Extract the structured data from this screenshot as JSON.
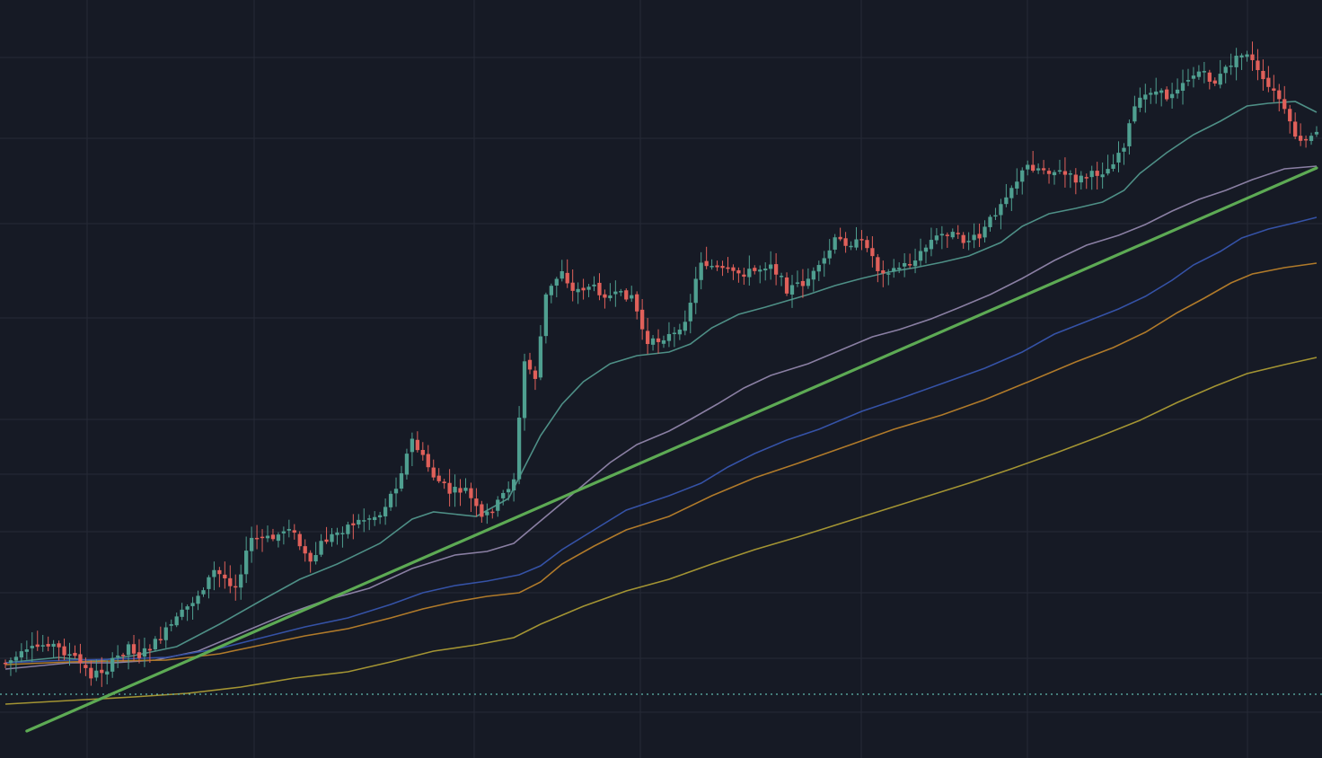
{
  "chart_data": {
    "type": "candlestick",
    "title": "",
    "xlabel": "",
    "ylabel": "",
    "x_range": [
      0,
      245
    ],
    "y_range": [
      0,
      844
    ],
    "grid": true,
    "colors": {
      "background": "#161a25",
      "grid": "#262a36",
      "up": "#4f9f90",
      "down": "#e0605a",
      "trendline": "#5daa54",
      "reference_line": "#5fb9ad"
    },
    "reference_level": 773,
    "trendline": {
      "from": [
        4,
        814
      ],
      "to": [
        245,
        187
      ]
    },
    "ohlc_anchors": [
      [
        0,
        738
      ],
      [
        8,
        715
      ],
      [
        13,
        733
      ],
      [
        16,
        752
      ],
      [
        19,
        744
      ],
      [
        23,
        718
      ],
      [
        25,
        730
      ],
      [
        28,
        716
      ],
      [
        32,
        690
      ],
      [
        36,
        662
      ],
      [
        39,
        636
      ],
      [
        43,
        652
      ],
      [
        46,
        600
      ],
      [
        50,
        600
      ],
      [
        53,
        585
      ],
      [
        57,
        630
      ],
      [
        59,
        605
      ],
      [
        64,
        585
      ],
      [
        67,
        578
      ],
      [
        70,
        573
      ],
      [
        73,
        540
      ],
      [
        76,
        490
      ],
      [
        80,
        530
      ],
      [
        83,
        548
      ],
      [
        86,
        545
      ],
      [
        89,
        578
      ],
      [
        92,
        560
      ],
      [
        95,
        532
      ],
      [
        97,
        403
      ],
      [
        99,
        420
      ],
      [
        101,
        330
      ],
      [
        104,
        300
      ],
      [
        106,
        325
      ],
      [
        109,
        318
      ],
      [
        113,
        330
      ],
      [
        117,
        328
      ],
      [
        120,
        385
      ],
      [
        123,
        375
      ],
      [
        126,
        372
      ],
      [
        128,
        335
      ],
      [
        130,
        290
      ],
      [
        133,
        300
      ],
      [
        136,
        305
      ],
      [
        140,
        302
      ],
      [
        143,
        292
      ],
      [
        146,
        322
      ],
      [
        149,
        315
      ],
      [
        152,
        300
      ],
      [
        155,
        268
      ],
      [
        158,
        270
      ],
      [
        161,
        272
      ],
      [
        163,
        300
      ],
      [
        166,
        300
      ],
      [
        170,
        290
      ],
      [
        173,
        268
      ],
      [
        176,
        258
      ],
      [
        179,
        268
      ],
      [
        182,
        265
      ],
      [
        185,
        235
      ],
      [
        187,
        215
      ],
      [
        191,
        185
      ],
      [
        194,
        188
      ],
      [
        197,
        192
      ],
      [
        200,
        200
      ],
      [
        203,
        195
      ],
      [
        206,
        188
      ],
      [
        209,
        160
      ],
      [
        211,
        120
      ],
      [
        214,
        100
      ],
      [
        217,
        108
      ],
      [
        220,
        90
      ],
      [
        223,
        80
      ],
      [
        226,
        92
      ],
      [
        229,
        70
      ],
      [
        232,
        58
      ],
      [
        235,
        92
      ],
      [
        238,
        110
      ],
      [
        240,
        140
      ],
      [
        242,
        160
      ],
      [
        245,
        150
      ]
    ],
    "series": [
      {
        "name": "",
        "color": "#4e8f86",
        "values": [
          [
            0,
            738
          ],
          [
            10,
            732
          ],
          [
            17,
            736
          ],
          [
            24,
            730
          ],
          [
            32,
            720
          ],
          [
            40,
            695
          ],
          [
            48,
            668
          ],
          [
            55,
            645
          ],
          [
            62,
            628
          ],
          [
            70,
            605
          ],
          [
            76,
            578
          ],
          [
            80,
            570
          ],
          [
            88,
            575
          ],
          [
            94,
            555
          ],
          [
            97,
            520
          ],
          [
            100,
            485
          ],
          [
            104,
            450
          ],
          [
            108,
            425
          ],
          [
            113,
            405
          ],
          [
            118,
            396
          ],
          [
            124,
            392
          ],
          [
            128,
            383
          ],
          [
            132,
            365
          ],
          [
            137,
            350
          ],
          [
            142,
            342
          ],
          [
            146,
            335
          ],
          [
            150,
            328
          ],
          [
            155,
            318
          ],
          [
            160,
            310
          ],
          [
            165,
            303
          ],
          [
            170,
            298
          ],
          [
            175,
            292
          ],
          [
            180,
            285
          ],
          [
            186,
            270
          ],
          [
            190,
            252
          ],
          [
            195,
            238
          ],
          [
            200,
            232
          ],
          [
            205,
            225
          ],
          [
            209,
            212
          ],
          [
            212,
            193
          ],
          [
            217,
            170
          ],
          [
            222,
            150
          ],
          [
            227,
            135
          ],
          [
            232,
            118
          ],
          [
            236,
            115
          ],
          [
            241,
            113
          ],
          [
            245,
            125
          ]
        ]
      },
      {
        "name": "",
        "color": "#8a7fa3",
        "values": [
          [
            0,
            745
          ],
          [
            12,
            738
          ],
          [
            20,
            738
          ],
          [
            28,
            735
          ],
          [
            36,
            725
          ],
          [
            44,
            705
          ],
          [
            52,
            685
          ],
          [
            60,
            668
          ],
          [
            68,
            655
          ],
          [
            76,
            633
          ],
          [
            84,
            618
          ],
          [
            90,
            614
          ],
          [
            95,
            605
          ],
          [
            100,
            580
          ],
          [
            104,
            560
          ],
          [
            108,
            540
          ],
          [
            113,
            515
          ],
          [
            118,
            495
          ],
          [
            124,
            480
          ],
          [
            128,
            467
          ],
          [
            133,
            450
          ],
          [
            138,
            432
          ],
          [
            143,
            418
          ],
          [
            150,
            405
          ],
          [
            156,
            390
          ],
          [
            162,
            375
          ],
          [
            167,
            367
          ],
          [
            173,
            355
          ],
          [
            178,
            343
          ],
          [
            184,
            328
          ],
          [
            190,
            310
          ],
          [
            196,
            290
          ],
          [
            202,
            273
          ],
          [
            208,
            262
          ],
          [
            213,
            250
          ],
          [
            218,
            235
          ],
          [
            223,
            222
          ],
          [
            228,
            212
          ],
          [
            233,
            200
          ],
          [
            239,
            188
          ],
          [
            245,
            185
          ]
        ]
      },
      {
        "name": "",
        "color": "#3552a6",
        "values": [
          [
            0,
            738
          ],
          [
            12,
            735
          ],
          [
            20,
            734
          ],
          [
            30,
            732
          ],
          [
            40,
            722
          ],
          [
            48,
            710
          ],
          [
            56,
            698
          ],
          [
            64,
            688
          ],
          [
            72,
            673
          ],
          [
            78,
            660
          ],
          [
            84,
            652
          ],
          [
            90,
            647
          ],
          [
            96,
            640
          ],
          [
            100,
            630
          ],
          [
            104,
            612
          ],
          [
            110,
            590
          ],
          [
            116,
            568
          ],
          [
            124,
            552
          ],
          [
            130,
            538
          ],
          [
            135,
            520
          ],
          [
            140,
            505
          ],
          [
            146,
            490
          ],
          [
            152,
            478
          ],
          [
            160,
            458
          ],
          [
            168,
            442
          ],
          [
            176,
            425
          ],
          [
            183,
            410
          ],
          [
            190,
            392
          ],
          [
            196,
            372
          ],
          [
            202,
            358
          ],
          [
            208,
            344
          ],
          [
            213,
            330
          ],
          [
            218,
            312
          ],
          [
            222,
            295
          ],
          [
            227,
            280
          ],
          [
            231,
            265
          ],
          [
            236,
            255
          ],
          [
            241,
            248
          ],
          [
            245,
            242
          ]
        ]
      },
      {
        "name": "",
        "color": "#b07a2a",
        "values": [
          [
            0,
            740
          ],
          [
            12,
            737
          ],
          [
            20,
            736
          ],
          [
            30,
            735
          ],
          [
            40,
            728
          ],
          [
            48,
            718
          ],
          [
            56,
            708
          ],
          [
            64,
            700
          ],
          [
            72,
            688
          ],
          [
            78,
            678
          ],
          [
            84,
            670
          ],
          [
            90,
            664
          ],
          [
            96,
            660
          ],
          [
            100,
            648
          ],
          [
            104,
            628
          ],
          [
            110,
            608
          ],
          [
            116,
            590
          ],
          [
            124,
            575
          ],
          [
            132,
            552
          ],
          [
            140,
            532
          ],
          [
            148,
            516
          ],
          [
            158,
            495
          ],
          [
            166,
            478
          ],
          [
            175,
            462
          ],
          [
            183,
            445
          ],
          [
            192,
            423
          ],
          [
            200,
            403
          ],
          [
            207,
            387
          ],
          [
            213,
            370
          ],
          [
            219,
            348
          ],
          [
            224,
            332
          ],
          [
            229,
            315
          ],
          [
            233,
            305
          ],
          [
            239,
            298
          ],
          [
            245,
            293
          ]
        ]
      },
      {
        "name": "",
        "color": "#a39433",
        "values": [
          [
            0,
            784
          ],
          [
            12,
            780
          ],
          [
            24,
            776
          ],
          [
            34,
            772
          ],
          [
            44,
            765
          ],
          [
            54,
            755
          ],
          [
            64,
            748
          ],
          [
            72,
            737
          ],
          [
            80,
            725
          ],
          [
            88,
            718
          ],
          [
            95,
            710
          ],
          [
            100,
            695
          ],
          [
            108,
            675
          ],
          [
            116,
            658
          ],
          [
            124,
            645
          ],
          [
            132,
            628
          ],
          [
            140,
            612
          ],
          [
            148,
            598
          ],
          [
            156,
            583
          ],
          [
            164,
            568
          ],
          [
            172,
            553
          ],
          [
            180,
            538
          ],
          [
            188,
            522
          ],
          [
            196,
            505
          ],
          [
            204,
            487
          ],
          [
            212,
            468
          ],
          [
            219,
            448
          ],
          [
            226,
            430
          ],
          [
            232,
            416
          ],
          [
            239,
            406
          ],
          [
            245,
            398
          ]
        ]
      }
    ]
  }
}
